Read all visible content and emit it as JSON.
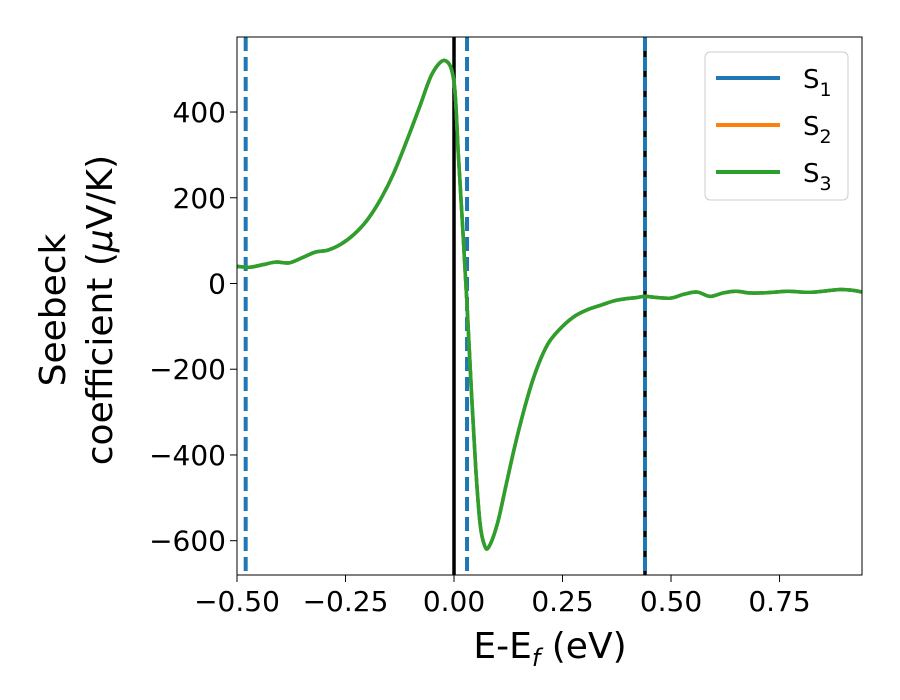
{
  "chart_data": {
    "type": "line",
    "xlabel_main": "E-E",
    "xlabel_sub": "f",
    "xlabel_unit": " (eV)",
    "ylabel_line1": "Seebeck",
    "ylabel_line2": "coefficient  (",
    "ylabel_mu": "μ",
    "ylabel_unit": "V/K)",
    "xlim": [
      -0.5,
      0.94
    ],
    "ylim": [
      -680,
      575
    ],
    "xticks": [
      {
        "value": -0.5,
        "label": "−0.50"
      },
      {
        "value": -0.25,
        "label": "−0.25"
      },
      {
        "value": 0.0,
        "label": "0.00"
      },
      {
        "value": 0.25,
        "label": "0.25"
      },
      {
        "value": 0.5,
        "label": "0.50"
      },
      {
        "value": 0.75,
        "label": "0.75"
      }
    ],
    "yticks": [
      {
        "value": 400,
        "label": "400"
      },
      {
        "value": 200,
        "label": "200"
      },
      {
        "value": 0,
        "label": "0"
      },
      {
        "value": -200,
        "label": "−200"
      },
      {
        "value": -400,
        "label": "−400"
      },
      {
        "value": -600,
        "label": "−600"
      }
    ],
    "grid": false,
    "legend_position": "top-right",
    "vlines": [
      {
        "x": 0.0,
        "style": "solid",
        "color": "#000000"
      },
      {
        "x": 0.44,
        "style": "solid",
        "color": "#000000"
      },
      {
        "x": -0.48,
        "style": "dashed",
        "color": "#1f77b4"
      },
      {
        "x": 0.03,
        "style": "dashed",
        "color": "#1f77b4"
      },
      {
        "x": 0.44,
        "style": "dashed",
        "color": "#1f77b4"
      }
    ],
    "series": [
      {
        "name": "S",
        "sub": "1",
        "color": "#1f77b4"
      },
      {
        "name": "S",
        "sub": "2",
        "color": "#ff7f0e"
      },
      {
        "name": "S",
        "sub": "3",
        "color": "#2ca02c"
      }
    ],
    "x": [
      -0.5,
      -0.47,
      -0.44,
      -0.41,
      -0.38,
      -0.35,
      -0.32,
      -0.29,
      -0.26,
      -0.23,
      -0.2,
      -0.17,
      -0.14,
      -0.11,
      -0.08,
      -0.05,
      -0.02,
      0.0,
      0.01,
      0.02,
      0.03,
      0.04,
      0.05,
      0.06,
      0.07,
      0.08,
      0.1,
      0.12,
      0.14,
      0.16,
      0.18,
      0.2,
      0.22,
      0.25,
      0.28,
      0.31,
      0.34,
      0.37,
      0.4,
      0.42,
      0.44,
      0.47,
      0.5,
      0.53,
      0.56,
      0.59,
      0.62,
      0.65,
      0.68,
      0.71,
      0.74,
      0.77,
      0.8,
      0.83,
      0.86,
      0.89,
      0.92,
      0.94
    ],
    "y": [
      40,
      38,
      44,
      50,
      48,
      60,
      73,
      78,
      92,
      115,
      148,
      195,
      255,
      330,
      410,
      490,
      520,
      470,
      300,
      130,
      -50,
      -250,
      -430,
      -560,
      -610,
      -615,
      -560,
      -470,
      -380,
      -300,
      -230,
      -175,
      -135,
      -100,
      -75,
      -60,
      -50,
      -40,
      -35,
      -33,
      -30,
      -33,
      -34,
      -25,
      -20,
      -30,
      -22,
      -18,
      -22,
      -22,
      -20,
      -18,
      -20,
      -20,
      -17,
      -14,
      -16,
      -20
    ],
    "series_values_note": "S1, S2 and S3 overlap; S3 drawn on top"
  }
}
